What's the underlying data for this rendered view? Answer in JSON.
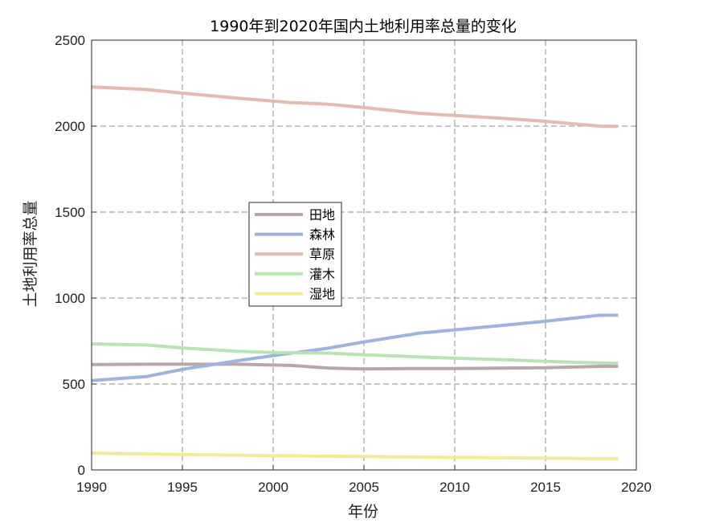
{
  "chart_data": {
    "type": "line",
    "title": "1990年到2020年国内土地利用率总量的变化",
    "xlabel": "年份",
    "ylabel": "土地利用率总量",
    "xlim": [
      1990,
      2020
    ],
    "ylim": [
      0,
      2500
    ],
    "xticks": [
      1990,
      1995,
      2000,
      2005,
      2010,
      2015,
      2020
    ],
    "yticks": [
      0,
      500,
      1000,
      1500,
      2000,
      2500
    ],
    "grid": true,
    "legend_position": "center-left",
    "series": [
      {
        "name": "田地",
        "color": "#b8a6aa",
        "x": [
          1990,
          1993,
          1995,
          1998,
          2001,
          2003,
          2005,
          2008,
          2010,
          2013,
          2015,
          2018,
          2019
        ],
        "values": [
          613,
          615,
          615,
          615,
          608,
          593,
          588,
          590,
          590,
          593,
          595,
          603,
          603
        ]
      },
      {
        "name": "森林",
        "color": "#9db3e0",
        "x": [
          1990,
          1993,
          1995,
          1998,
          2000,
          2003,
          2005,
          2008,
          2010,
          2013,
          2015,
          2018,
          2019
        ],
        "values": [
          520,
          543,
          585,
          635,
          665,
          708,
          745,
          795,
          815,
          845,
          865,
          900,
          900
        ]
      },
      {
        "name": "草原",
        "color": "#e8b8b2",
        "x": [
          1990,
          1993,
          1995,
          1998,
          2001,
          2003,
          2005,
          2008,
          2010,
          2013,
          2015,
          2018,
          2019
        ],
        "values": [
          2228,
          2213,
          2192,
          2163,
          2137,
          2128,
          2108,
          2075,
          2062,
          2043,
          2028,
          2000,
          1998
        ]
      },
      {
        "name": "灌木",
        "color": "#b9e3b4",
        "x": [
          1990,
          1993,
          1995,
          1998,
          2000,
          2003,
          2005,
          2008,
          2010,
          2013,
          2015,
          2018,
          2019
        ],
        "values": [
          733,
          727,
          710,
          690,
          683,
          680,
          670,
          658,
          650,
          640,
          632,
          622,
          620
        ]
      },
      {
        "name": "湿地",
        "color": "#f1ec9c",
        "x": [
          1990,
          1993,
          1995,
          1998,
          2000,
          2003,
          2005,
          2008,
          2010,
          2013,
          2015,
          2018,
          2019
        ],
        "values": [
          98,
          93,
          90,
          86,
          83,
          80,
          78,
          75,
          73,
          70,
          68,
          66,
          66
        ]
      }
    ]
  }
}
